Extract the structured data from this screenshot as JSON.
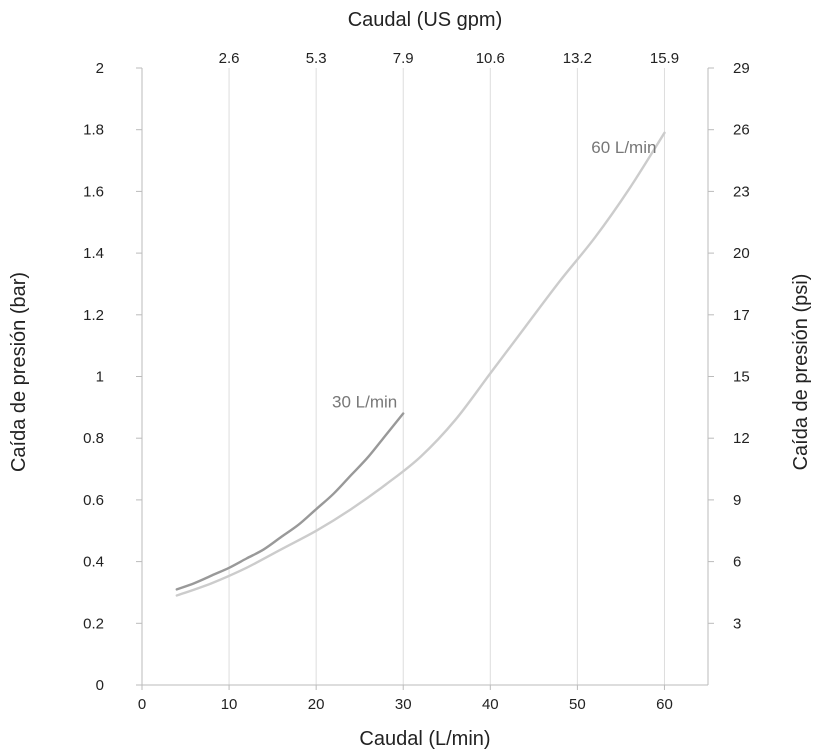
{
  "chart_data": {
    "type": "line",
    "title": "",
    "xlabel": "Caudal (L/min)",
    "x2label": "Caudal (US gpm)",
    "ylabel": "Caída de presión (bar)",
    "y2label": "Caída de presión (psi)",
    "xlim": [
      0,
      65
    ],
    "ylim": [
      0,
      2
    ],
    "xticks": [
      "0",
      "10",
      "20",
      "30",
      "40",
      "50",
      "60"
    ],
    "x2ticks": [
      "2.6",
      "5.3",
      "7.9",
      "10.6",
      "13.2",
      "15.9"
    ],
    "yticks": [
      "0",
      "0.2",
      "0.4",
      "0.6",
      "0.8",
      "1",
      "1.2",
      "1.4",
      "1.6",
      "1.8",
      "2"
    ],
    "y2ticks": [
      "3",
      "6",
      "9",
      "12",
      "15",
      "17",
      "20",
      "23",
      "26",
      "29"
    ],
    "grid": "vertical",
    "series": [
      {
        "name": "30 L/min",
        "color": "#999999",
        "x": [
          4,
          6,
          8,
          10,
          12,
          14,
          16,
          18,
          20,
          22,
          24,
          26,
          28,
          30
        ],
        "y": [
          0.31,
          0.33,
          0.355,
          0.38,
          0.41,
          0.44,
          0.48,
          0.52,
          0.57,
          0.62,
          0.68,
          0.74,
          0.81,
          0.88
        ]
      },
      {
        "name": "60 L/min",
        "color": "#cccccc",
        "x": [
          4,
          8,
          12,
          16,
          20,
          24,
          28,
          32,
          36,
          40,
          44,
          48,
          52,
          56,
          60
        ],
        "y": [
          0.29,
          0.33,
          0.38,
          0.44,
          0.5,
          0.57,
          0.65,
          0.74,
          0.86,
          1.01,
          1.16,
          1.31,
          1.45,
          1.61,
          1.79
        ]
      }
    ]
  }
}
